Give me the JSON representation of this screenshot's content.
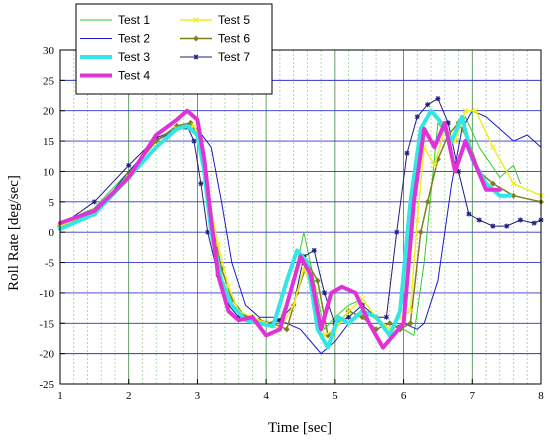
{
  "chart_data": {
    "type": "line",
    "title": "",
    "xlabel": "Time [sec]",
    "ylabel": "Roll Rate [deg/sec]",
    "xlim": [
      1,
      8
    ],
    "ylim": [
      -25,
      30
    ],
    "xticks": [
      "1",
      "2",
      "3",
      "4",
      "5",
      "6",
      "7",
      "8"
    ],
    "yticks": [
      "-25",
      "-20",
      "-15",
      "-10",
      "-5",
      "0",
      "5",
      "10",
      "15",
      "20",
      "25",
      "30"
    ],
    "grid": true,
    "legend_placement": "top-left",
    "series": [
      {
        "name": "Test 1",
        "color": "#33cc33",
        "width": 1,
        "marker": "none",
        "x": [
          1.0,
          1.5,
          2.0,
          2.4,
          2.7,
          2.9,
          3.0,
          3.1,
          3.2,
          3.3,
          3.4,
          3.6,
          3.8,
          4.0,
          4.2,
          4.4,
          4.55,
          4.7,
          4.85,
          5.0,
          5.2,
          5.4,
          5.6,
          5.8,
          6.0,
          6.15,
          6.3,
          6.5,
          6.7,
          6.9,
          7.1,
          7.4,
          7.6,
          7.7
        ],
        "y": [
          1.5,
          4.0,
          10.0,
          15.0,
          17.5,
          18.0,
          16.0,
          10.0,
          2.0,
          -5.0,
          -10.0,
          -13.5,
          -14.0,
          -15.5,
          -14.5,
          -8.0,
          0.0,
          -8.0,
          -16.0,
          -14.0,
          -12.0,
          -11.0,
          -14.0,
          -17.0,
          -16.0,
          -17.0,
          -5.0,
          18.0,
          15.0,
          19.0,
          14.0,
          9.0,
          11.0,
          8.0
        ]
      },
      {
        "name": "Test 2",
        "color": "#1a1acc",
        "width": 1,
        "marker": "none",
        "x": [
          1.0,
          1.5,
          2.0,
          2.4,
          2.7,
          2.9,
          3.0,
          3.2,
          3.35,
          3.5,
          3.7,
          3.9,
          4.1,
          4.3,
          4.5,
          4.65,
          4.8,
          5.0,
          5.2,
          5.4,
          5.6,
          5.8,
          6.0,
          6.2,
          6.3,
          6.5,
          6.7,
          6.85,
          7.0,
          7.2,
          7.4,
          7.6,
          7.8,
          8.0
        ],
        "y": [
          1.0,
          3.0,
          10.0,
          15.0,
          17.0,
          17.0,
          17.0,
          14.0,
          5.0,
          -5.0,
          -12.0,
          -14.0,
          -14.0,
          -15.0,
          -16.0,
          -18.0,
          -20.0,
          -18.0,
          -15.0,
          -13.0,
          -14.0,
          -16.0,
          -15.0,
          -16.0,
          -15.0,
          -8.0,
          8.0,
          17.0,
          20.0,
          19.0,
          17.0,
          15.0,
          16.0,
          14.0
        ]
      },
      {
        "name": "Test 3",
        "color": "#33e5e5",
        "width": 4,
        "marker": "none",
        "x": [
          1.0,
          1.5,
          2.0,
          2.4,
          2.7,
          2.85,
          3.0,
          3.1,
          3.2,
          3.35,
          3.5,
          3.7,
          3.9,
          4.1,
          4.3,
          4.45,
          4.6,
          4.75,
          4.9,
          5.05,
          5.2,
          5.4,
          5.6,
          5.8,
          5.95,
          6.1,
          6.25,
          6.4,
          6.55,
          6.7,
          6.85,
          7.0,
          7.2,
          7.4,
          7.55
        ],
        "y": [
          0.5,
          3.0,
          9.0,
          14.0,
          17.0,
          17.5,
          16.0,
          10.0,
          0.0,
          -8.0,
          -12.0,
          -14.5,
          -15.0,
          -15.5,
          -8.0,
          -3.0,
          -5.0,
          -16.0,
          -19.0,
          -14.0,
          -15.0,
          -13.0,
          -14.0,
          -17.0,
          -13.0,
          5.0,
          17.0,
          20.0,
          18.0,
          15.0,
          19.0,
          12.0,
          8.0,
          6.0,
          6.0
        ]
      },
      {
        "name": "Test 4",
        "color": "#e033d6",
        "width": 4,
        "marker": "none",
        "x": [
          1.0,
          1.5,
          2.0,
          2.4,
          2.7,
          2.85,
          3.0,
          3.1,
          3.2,
          3.3,
          3.45,
          3.6,
          3.8,
          4.0,
          4.2,
          4.35,
          4.5,
          4.65,
          4.8,
          4.95,
          5.1,
          5.3,
          5.5,
          5.7,
          5.85,
          6.0,
          6.15,
          6.3,
          6.45,
          6.6,
          6.75,
          6.9,
          7.05,
          7.2,
          7.4
        ],
        "y": [
          1.5,
          3.5,
          9.0,
          16.0,
          18.5,
          20.0,
          18.5,
          12.0,
          2.0,
          -7.0,
          -13.0,
          -14.5,
          -14.0,
          -17.0,
          -16.0,
          -10.0,
          -4.0,
          -7.0,
          -16.0,
          -10.0,
          -9.0,
          -10.0,
          -15.0,
          -19.0,
          -17.0,
          -15.0,
          5.0,
          17.0,
          14.0,
          18.0,
          10.0,
          15.0,
          11.0,
          7.0,
          7.0
        ]
      },
      {
        "name": "Test 5",
        "color": "#eeee22",
        "width": 1.5,
        "marker": "x",
        "x": [
          1.0,
          1.5,
          2.0,
          2.4,
          2.7,
          2.95,
          3.05,
          3.15,
          3.3,
          3.45,
          3.6,
          3.8,
          4.0,
          4.2,
          4.4,
          4.55,
          4.7,
          4.85,
          5.0,
          5.2,
          5.4,
          5.6,
          5.8,
          5.95,
          6.1,
          6.2,
          6.3,
          6.45,
          6.6,
          6.75,
          6.9,
          7.05,
          7.3,
          7.6,
          8.0
        ],
        "y": [
          1.0,
          3.5,
          9.0,
          14.0,
          17.0,
          17.5,
          15.0,
          7.0,
          -2.0,
          -9.0,
          -13.0,
          -14.0,
          -15.0,
          -16.0,
          -12.0,
          -6.0,
          -10.0,
          -17.0,
          -16.0,
          -13.0,
          -11.0,
          -14.0,
          -16.0,
          -14.0,
          -13.0,
          2.0,
          14.0,
          11.0,
          17.0,
          15.0,
          20.0,
          20.0,
          14.0,
          8.0,
          6.0
        ]
      },
      {
        "name": "Test 6",
        "color": "#808020",
        "width": 1.5,
        "marker": "diamond",
        "x": [
          1.0,
          1.5,
          2.0,
          2.4,
          2.7,
          2.9,
          3.0,
          3.1,
          3.2,
          3.35,
          3.5,
          3.7,
          3.9,
          4.1,
          4.3,
          4.45,
          4.6,
          4.75,
          4.9,
          5.05,
          5.2,
          5.4,
          5.6,
          5.8,
          5.95,
          6.1,
          6.25,
          6.35,
          6.5,
          6.65,
          6.8,
          6.95,
          7.1,
          7.3,
          7.6,
          8.0
        ],
        "y": [
          1.0,
          3.0,
          9.5,
          15.0,
          17.5,
          18.0,
          16.0,
          10.0,
          2.0,
          -6.0,
          -11.0,
          -14.0,
          -14.5,
          -15.0,
          -16.0,
          -10.0,
          -5.0,
          -8.0,
          -17.0,
          -15.0,
          -13.0,
          -14.0,
          -16.0,
          -15.0,
          -16.0,
          -15.0,
          0.0,
          5.0,
          12.0,
          16.0,
          18.0,
          15.0,
          10.0,
          8.0,
          6.0,
          5.0
        ]
      },
      {
        "name": "Test 7",
        "color": "#1e1e80",
        "width": 1,
        "marker": "star",
        "x": [
          1.0,
          1.5,
          2.0,
          2.4,
          2.7,
          2.85,
          2.95,
          3.05,
          3.15,
          3.3,
          3.45,
          3.6,
          3.8,
          4.0,
          4.2,
          4.4,
          4.55,
          4.7,
          4.85,
          5.0,
          5.2,
          5.4,
          5.6,
          5.75,
          5.9,
          6.05,
          6.2,
          6.35,
          6.5,
          6.65,
          6.8,
          6.95,
          7.1,
          7.3,
          7.5,
          7.7,
          7.9,
          8.0
        ],
        "y": [
          1.0,
          5.0,
          11.0,
          15.5,
          17.0,
          17.5,
          15.0,
          8.0,
          0.0,
          -7.0,
          -12.0,
          -14.0,
          -14.0,
          -15.0,
          -14.5,
          -12.0,
          -4.0,
          -3.0,
          -10.0,
          -15.0,
          -14.0,
          -12.0,
          -14.0,
          -14.0,
          0.0,
          13.0,
          19.0,
          21.0,
          22.0,
          18.0,
          10.0,
          3.0,
          2.0,
          1.0,
          1.0,
          2.0,
          1.5,
          2.0
        ]
      }
    ]
  }
}
